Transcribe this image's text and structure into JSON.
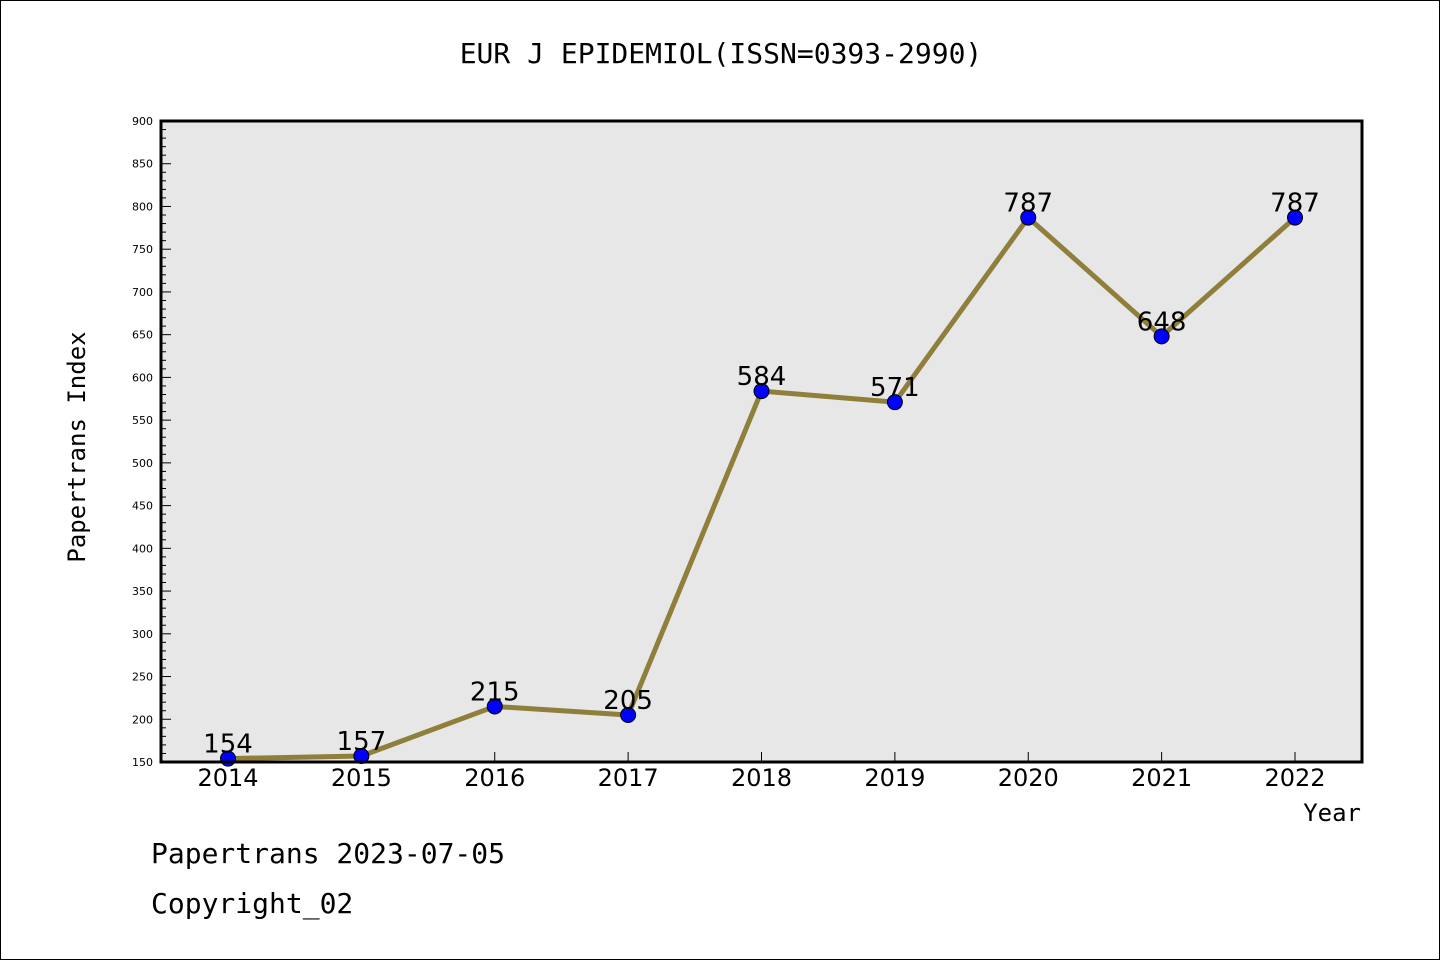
{
  "chart_data": {
    "type": "line",
    "title": "EUR J EPIDEMIOL(ISSN=0393-2990)",
    "xlabel": "Year",
    "ylabel": "Papertrans Index",
    "categories": [
      "2014",
      "2015",
      "2016",
      "2017",
      "2018",
      "2019",
      "2020",
      "2021",
      "2022"
    ],
    "series": [
      {
        "values": [
          154,
          157,
          215,
          205,
          584,
          571,
          787,
          648,
          787
        ]
      }
    ],
    "ylim": [
      150,
      900
    ],
    "yticks": [
      150,
      200,
      250,
      300,
      350,
      400,
      450,
      500,
      550,
      600,
      650,
      700,
      750,
      800,
      850,
      900
    ],
    "grid": false,
    "colors": {
      "line": "#8f7f3b",
      "marker": "#0000ff",
      "plot_background": "#e7e7e7"
    }
  },
  "footer": {
    "date_text": "Papertrans 2023-07-05",
    "copyright_text": "Copyright_02"
  }
}
